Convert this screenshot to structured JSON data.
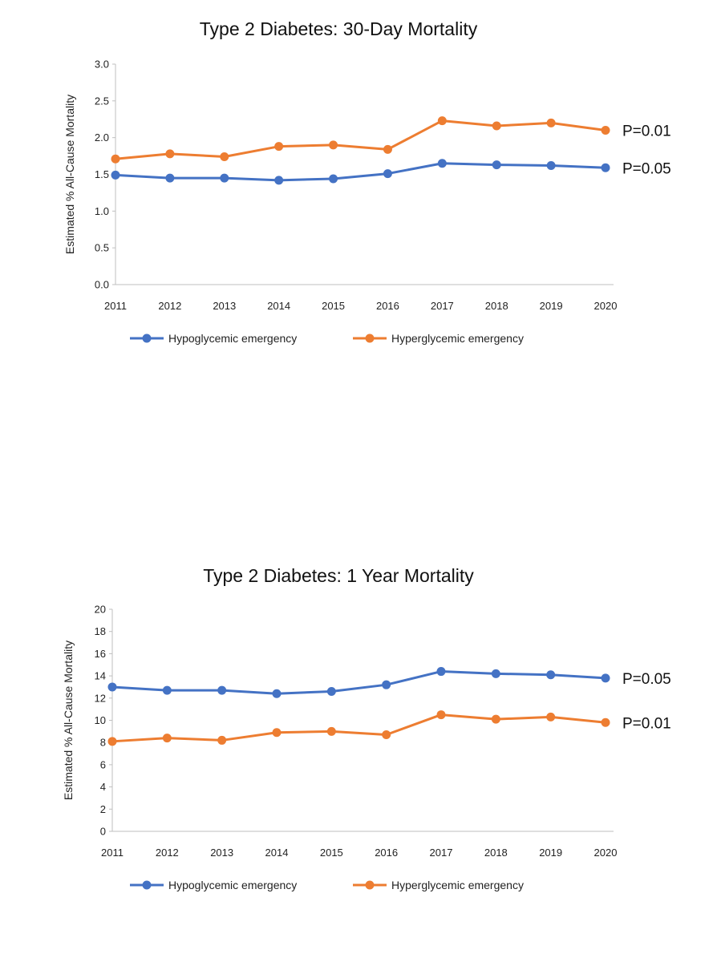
{
  "chart_data": [
    {
      "type": "line",
      "title": "Type 2 Diabetes: 30-Day Mortality",
      "ylabel": "Estimated % All-Cause Mortality",
      "xlabel": "",
      "x": [
        "2011",
        "2012",
        "2013",
        "2014",
        "2015",
        "2016",
        "2017",
        "2018",
        "2019",
        "2020"
      ],
      "ylim": [
        0,
        3.0
      ],
      "yticks": [
        "0.0",
        "0.5",
        "1.0",
        "1.5",
        "2.0",
        "2.5",
        "3.0"
      ],
      "grid": false,
      "legend_position": "bottom",
      "series": [
        {
          "name": "Hypoglycemic emergency",
          "color": "#4472c4",
          "values": [
            1.49,
            1.45,
            1.45,
            1.42,
            1.44,
            1.51,
            1.65,
            1.63,
            1.62,
            1.59
          ],
          "annotation": "P=0.05"
        },
        {
          "name": "Hyperglycemic emergency",
          "color": "#ed7d31",
          "values": [
            1.71,
            1.78,
            1.74,
            1.88,
            1.9,
            1.84,
            2.23,
            2.16,
            2.2,
            2.1
          ],
          "annotation": "P=0.01"
        }
      ]
    },
    {
      "type": "line",
      "title": "Type 2 Diabetes: 1 Year Mortality",
      "ylabel": "Estimated % All-Cause Mortality",
      "xlabel": "",
      "x": [
        "2011",
        "2012",
        "2013",
        "2014",
        "2015",
        "2016",
        "2017",
        "2018",
        "2019",
        "2020"
      ],
      "ylim": [
        0,
        20
      ],
      "yticks": [
        "0",
        "2",
        "4",
        "6",
        "8",
        "10",
        "12",
        "14",
        "16",
        "18",
        "20"
      ],
      "grid": false,
      "legend_position": "bottom",
      "series": [
        {
          "name": "Hypoglycemic emergency",
          "color": "#4472c4",
          "values": [
            13.0,
            12.7,
            12.7,
            12.4,
            12.6,
            13.2,
            14.4,
            14.2,
            14.1,
            13.8
          ],
          "annotation": "P=0.05"
        },
        {
          "name": "Hyperglycemic emergency",
          "color": "#ed7d31",
          "values": [
            8.1,
            8.4,
            8.2,
            8.9,
            9.0,
            8.7,
            10.5,
            10.1,
            10.3,
            9.8
          ],
          "annotation": "P=0.01"
        }
      ]
    }
  ]
}
